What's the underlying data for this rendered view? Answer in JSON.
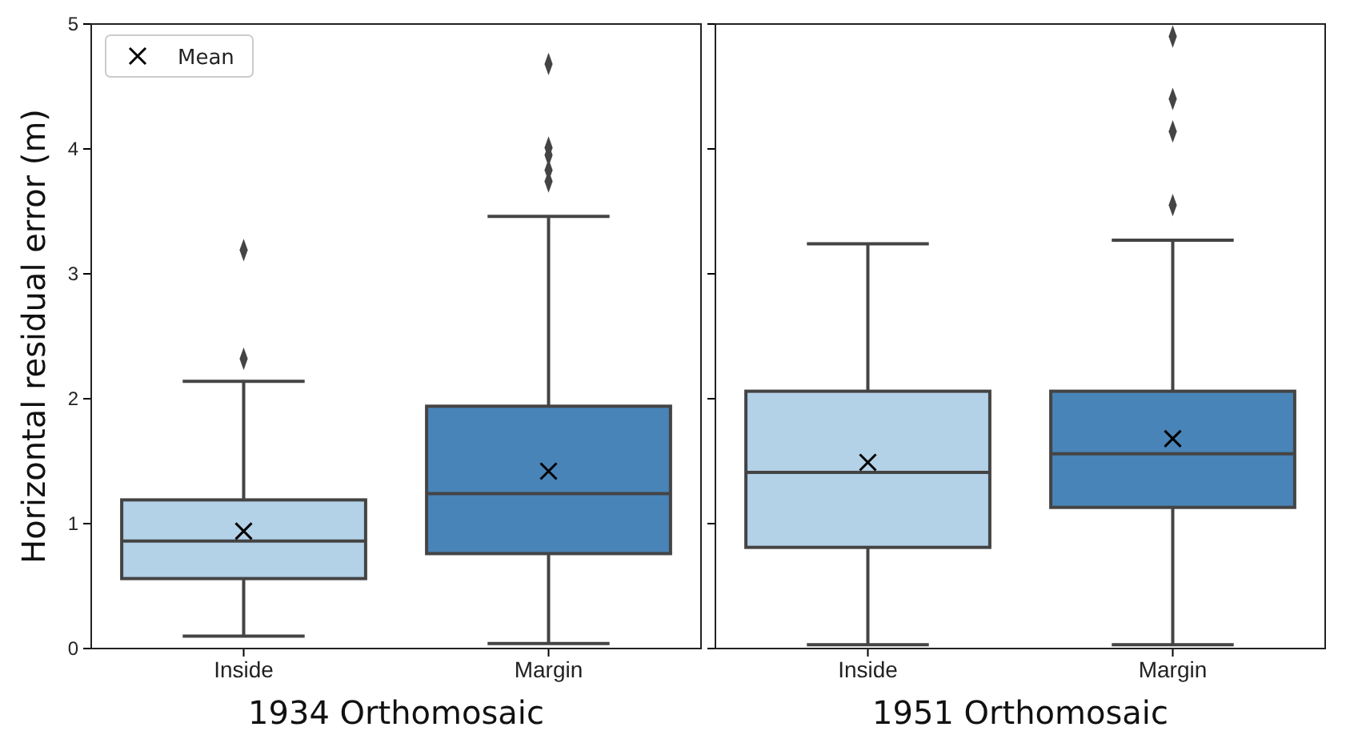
{
  "chart_data": [
    {
      "type": "box",
      "categories": [
        "Inside",
        "Margin"
      ],
      "xlabel": "1934 Orthomosaic",
      "ylabel": "Horizontal residual error (m)",
      "ylim": [
        0,
        5
      ],
      "yticks": [
        0,
        1,
        2,
        3,
        4,
        5
      ],
      "colors": [
        "#b3d1e7",
        "#4884b8"
      ],
      "legend": "top left",
      "boxes": [
        {
          "low": 0.1,
          "q1": 0.56,
          "median": 0.86,
          "q3": 1.19,
          "high": 2.14,
          "outliers": [
            3.19,
            2.32
          ]
        },
        {
          "low": 0.04,
          "q1": 0.76,
          "median": 1.24,
          "q3": 1.94,
          "high": 3.46,
          "outliers": [
            4.68,
            4.01,
            3.95,
            3.83,
            3.74
          ]
        }
      ],
      "series": [
        {
          "type": "scatter",
          "name": "Mean",
          "color": "#000000",
          "marker": "cross",
          "x": [
            "Inside",
            "Margin"
          ],
          "values": [
            0.94,
            1.42
          ]
        }
      ]
    },
    {
      "type": "box",
      "categories": [
        "Inside",
        "Margin"
      ],
      "xlabel": "1951 Orthomosaic",
      "ylim": [
        0,
        5
      ],
      "yticks": [
        0,
        1,
        2,
        3,
        4,
        5
      ],
      "tick_labels": "x",
      "colors": [
        "#b3d1e7",
        "#4884b8"
      ],
      "boxes": [
        {
          "low": 0.03,
          "q1": 0.81,
          "median": 1.41,
          "q3": 2.06,
          "high": 3.24
        },
        {
          "low": 0.03,
          "q1": 1.13,
          "median": 1.56,
          "q3": 2.06,
          "high": 3.27,
          "outliers": [
            4.9,
            4.4,
            4.14,
            3.55
          ]
        }
      ],
      "series": [
        {
          "type": "scatter",
          "color": "#000000",
          "marker": "cross",
          "x": [
            "Inside",
            "Margin"
          ],
          "values": [
            1.49,
            1.68
          ]
        }
      ]
    }
  ]
}
